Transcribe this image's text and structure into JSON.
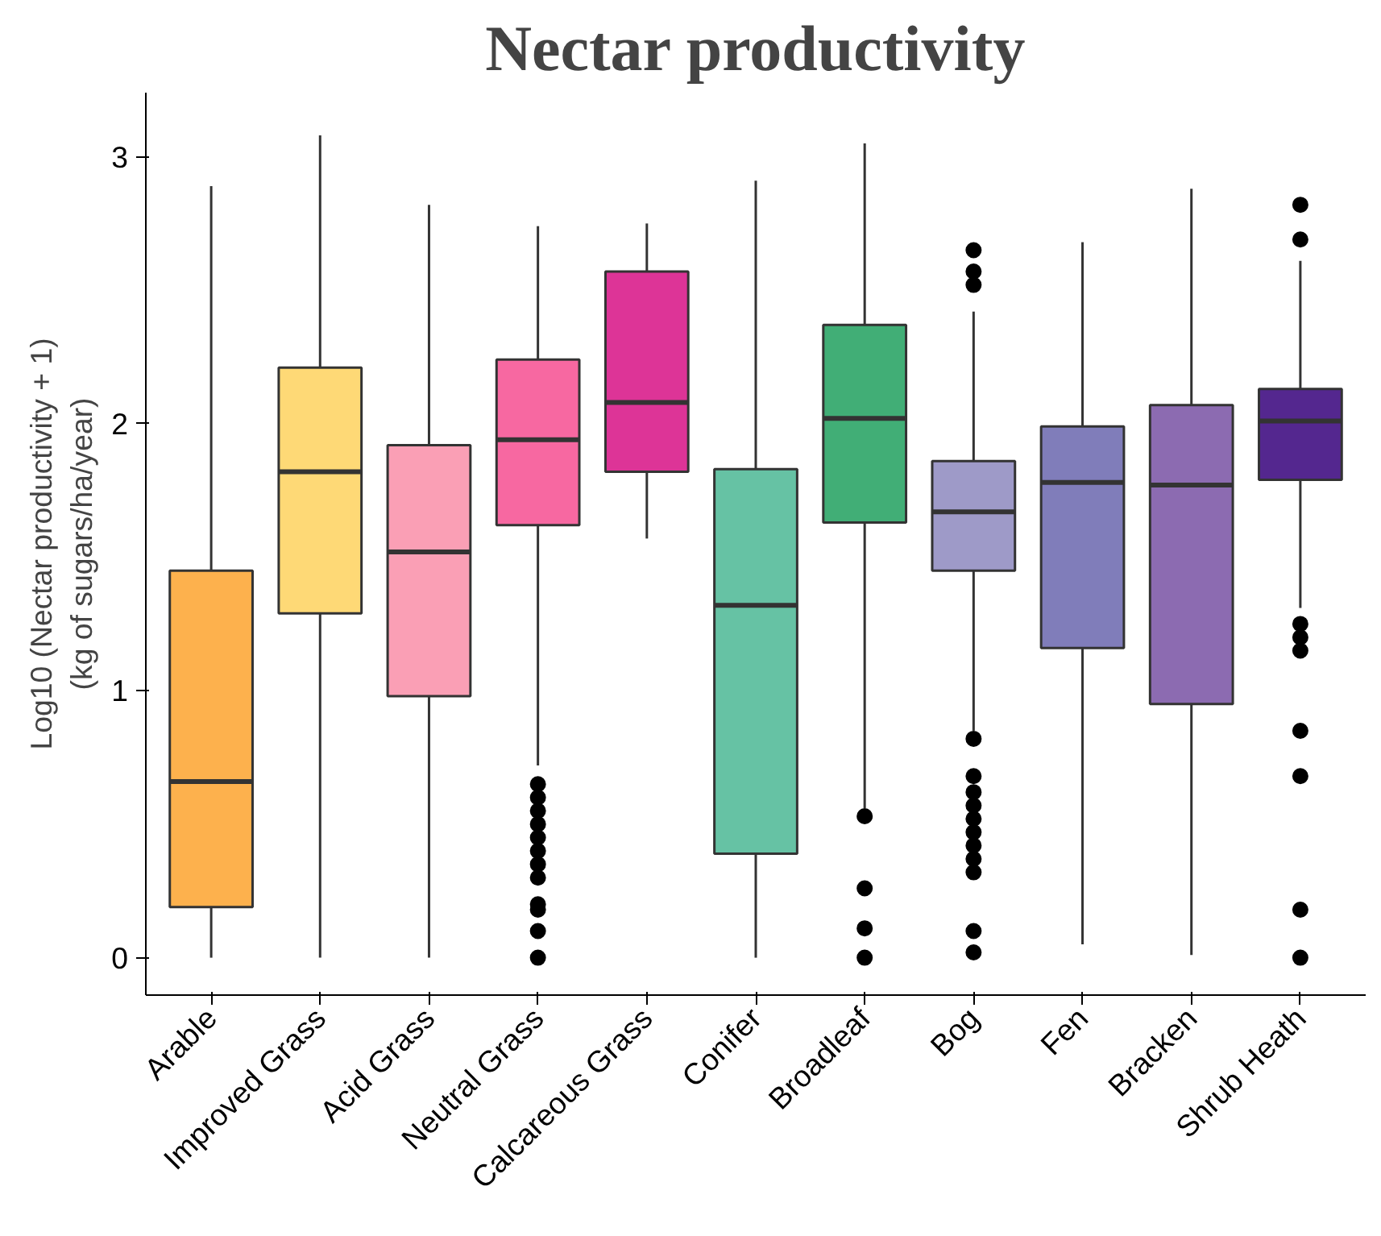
{
  "chart_data": {
    "type": "box",
    "title": "Nectar productivity",
    "ylabel": "Log10 (Nectar productivity + 1)\n(kg of sugars/ha/year)",
    "categories": [
      "Arable",
      "Improved Grass",
      "Acid Grass",
      "Neutral Grass",
      "Calcareous Grass",
      "Conifer",
      "Broadleaf",
      "Bog",
      "Fen",
      "Bracken",
      "Shrub Heath"
    ],
    "colors": [
      "#fdb14d",
      "#fed976",
      "#fa9fb5",
      "#f768a1",
      "#dd3497",
      "#66c2a4",
      "#41ae76",
      "#9e9ac8",
      "#807dba",
      "#8c6bb1",
      "#54278f"
    ],
    "boxes": [
      {
        "low": 0,
        "q1": 0.19,
        "median": 0.66,
        "q3": 1.45,
        "high": 2.89
      },
      {
        "low": 0,
        "q1": 1.29,
        "median": 1.82,
        "q3": 2.21,
        "high": 3.08
      },
      {
        "low": 0,
        "q1": 0.98,
        "median": 1.52,
        "q3": 1.92,
        "high": 2.82
      },
      {
        "low": 0.72,
        "q1": 1.62,
        "median": 1.94,
        "q3": 2.24,
        "high": 2.74,
        "outliers": [
          0.65,
          0.6,
          0.55,
          0.5,
          0.45,
          0.4,
          0.35,
          0.3,
          0.2,
          0.18,
          0.1,
          0
        ]
      },
      {
        "low": 1.57,
        "q1": 1.82,
        "median": 2.08,
        "q3": 2.57,
        "high": 2.75
      },
      {
        "low": 0,
        "q1": 0.39,
        "median": 1.32,
        "q3": 1.83,
        "high": 2.91
      },
      {
        "low": 0.56,
        "q1": 1.63,
        "median": 2.02,
        "q3": 2.37,
        "high": 3.05,
        "outliers": [
          0.53,
          0.26,
          0.11,
          0
        ]
      },
      {
        "low": 0.85,
        "q1": 1.45,
        "median": 1.67,
        "q3": 1.86,
        "high": 2.42,
        "outliers": [
          2.65,
          2.57,
          2.52,
          0.82,
          0.68,
          0.62,
          0.57,
          0.52,
          0.47,
          0.42,
          0.37,
          0.32,
          0.1,
          0.02
        ]
      },
      {
        "low": 0.05,
        "q1": 1.16,
        "median": 1.78,
        "q3": 1.99,
        "high": 2.68
      },
      {
        "low": 0.01,
        "q1": 0.95,
        "median": 1.77,
        "q3": 2.07,
        "high": 2.88
      },
      {
        "low": 1.31,
        "q1": 1.79,
        "median": 2.01,
        "q3": 2.13,
        "high": 2.61,
        "outliers": [
          2.82,
          2.69,
          1.25,
          1.2,
          1.15,
          0.85,
          0.68,
          0.18,
          0
        ]
      }
    ],
    "ylim": [
      -0.14,
      3.24
    ],
    "yticks": [
      0,
      1,
      2,
      3
    ],
    "grid": false,
    "marker": "circle"
  }
}
